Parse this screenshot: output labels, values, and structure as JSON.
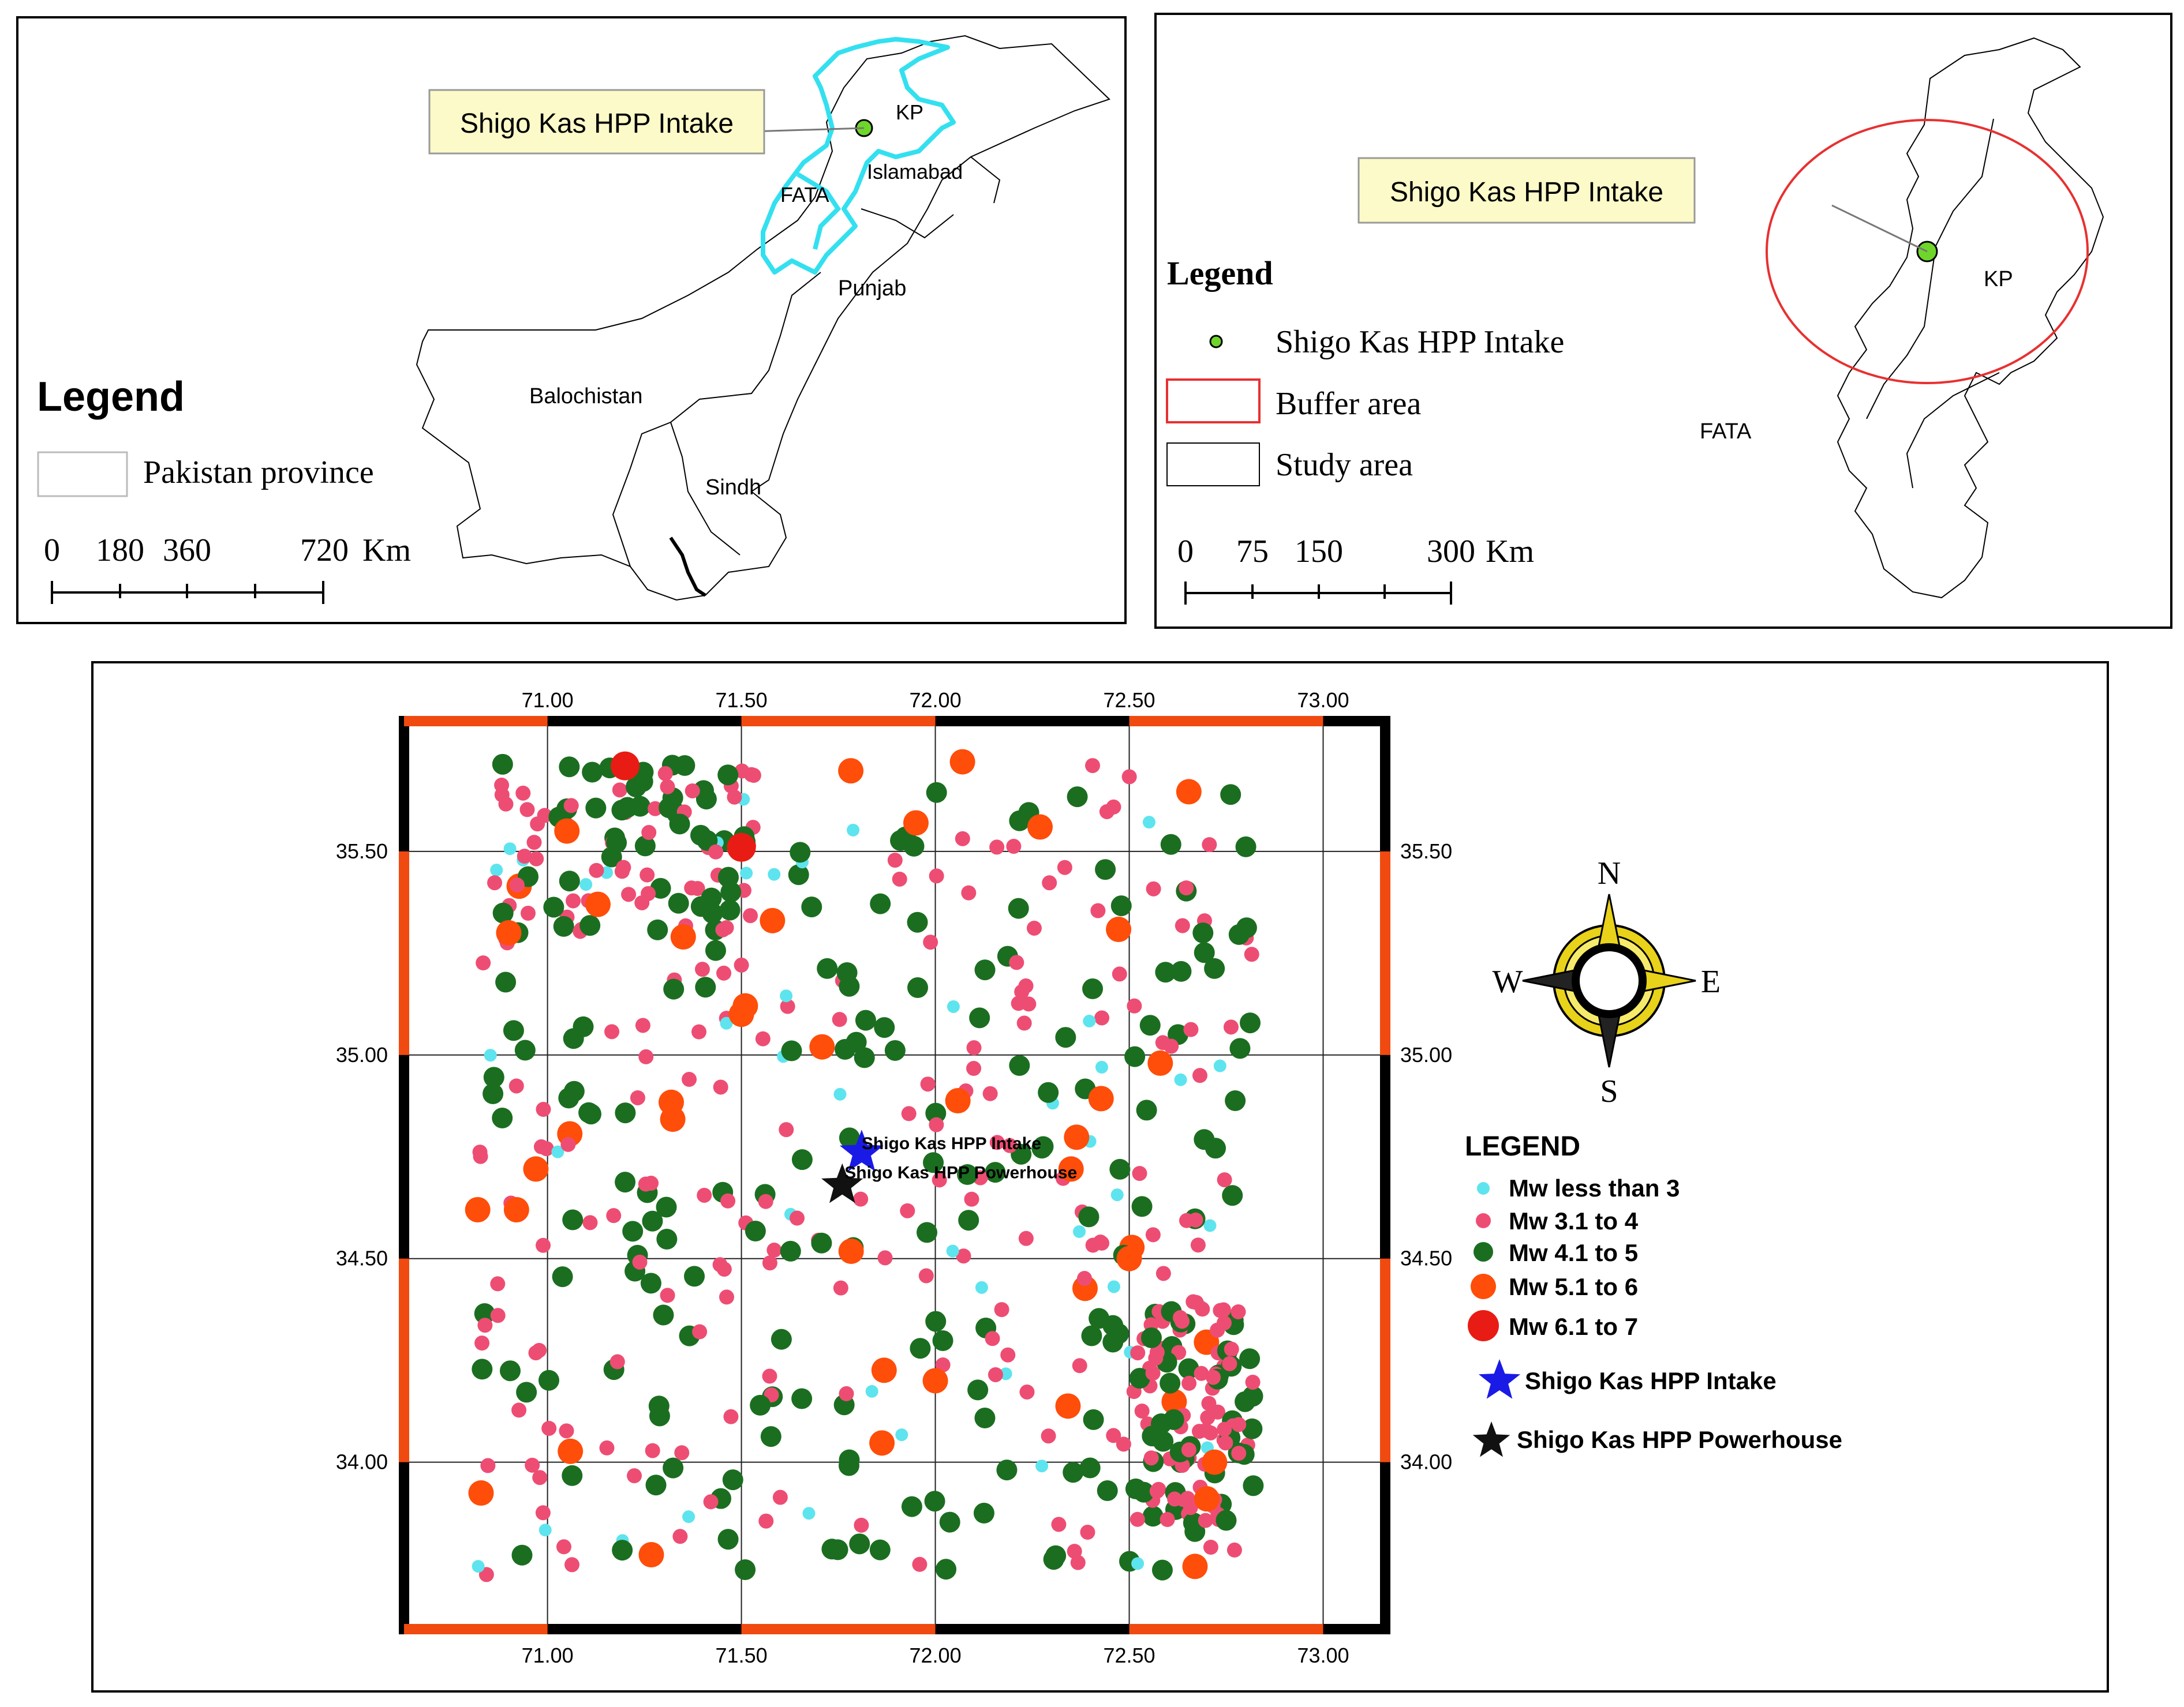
{
  "panel_pakistan": {
    "callout": "Shigo Kas HPP Intake",
    "labels": {
      "kp": "KP",
      "islamabad": "Islamabad",
      "fata": "FATA",
      "punjab": "Punjab",
      "balochistan": "Balochistan",
      "sindh": "Sindh"
    },
    "legend_title": "Legend",
    "legend_item": "Pakistan province",
    "scale": {
      "ticks": [
        "0",
        "180",
        "360",
        "720"
      ],
      "unit": "Km"
    }
  },
  "panel_kp": {
    "callout": "Shigo Kas HPP Intake",
    "labels": {
      "kp": "KP",
      "fata": "FATA"
    },
    "legend_title": "Legend",
    "legend_items": [
      "Shigo Kas HPP Intake",
      "Buffer area",
      "Study area"
    ],
    "scale": {
      "ticks": [
        "0",
        "75",
        "150",
        "300"
      ],
      "unit": "Km"
    }
  },
  "quake_map": {
    "x_ticks": [
      "71.00",
      "71.50",
      "72.00",
      "72.50",
      "73.00"
    ],
    "y_ticks": [
      "35.50",
      "35.00",
      "34.50",
      "34.00"
    ],
    "site_labels": {
      "intake": "Shigo Kas HPP Intake",
      "powerhouse": "Shigo Kas HPP Powerhouse"
    },
    "sites": {
      "intake": {
        "lon": 71.81,
        "lat": 34.76
      },
      "powerhouse": {
        "lon": 71.76,
        "lat": 34.68
      }
    },
    "compass": {
      "n": "N",
      "s": "S",
      "e": "E",
      "w": "W"
    },
    "legend_title": "LEGEND",
    "legend_items": [
      "Mw less than 3",
      "Mw 3.1 to 4",
      "Mw 4.1 to 5",
      "Mw 5.1 to 6",
      "Mw 6.1 to 7",
      "Shigo Kas HPP Intake",
      "Shigo Kas HPP Powerhouse"
    ],
    "colors": {
      "lt3": "#5ee4ee",
      "c34": "#ee4d73",
      "c45": "#1b6e20",
      "c56": "#ff4d0a",
      "c67": "#e81c14",
      "intake": "#1a1ae6",
      "powerhouse": "#111111",
      "frame_orange": "#f04a10",
      "buffer": "#e83030",
      "kp_outline": "#33e0f0",
      "site_dot": "#6ed62a"
    },
    "lon_range": [
      70.63,
      73.16
    ],
    "lat_range": [
      33.59,
      35.82
    ]
  }
}
